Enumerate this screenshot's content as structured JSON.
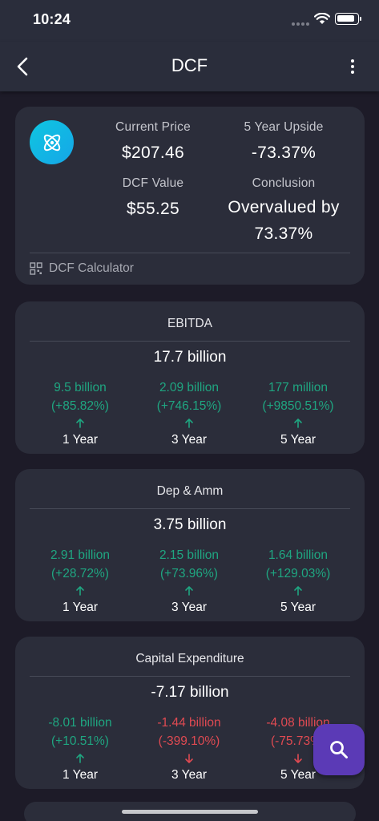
{
  "status_bar": {
    "time": "10:24"
  },
  "header": {
    "title": "DCF"
  },
  "summary": {
    "current_price_label": "Current Price",
    "current_price": "$207.46",
    "upside_label": "5 Year Upside",
    "upside": "-73.37%",
    "dcf_label": "DCF Value",
    "dcf_value": "$55.25",
    "conclusion_label": "Conclusion",
    "conclusion_line1": "Overvalued by",
    "conclusion_line2": "73.37%",
    "calculator_label": "DCF Calculator"
  },
  "metrics": [
    {
      "title": "EBITDA",
      "value": "17.7 billion",
      "cols": [
        {
          "value": "9.5 billion",
          "pct": "(+85.82%)",
          "dir": "up",
          "period": "1 Year"
        },
        {
          "value": "2.09 billion",
          "pct": "(+746.15%)",
          "dir": "up",
          "period": "3 Year"
        },
        {
          "value": "177 million",
          "pct": "(+9850.51%)",
          "dir": "up",
          "period": "5 Year"
        }
      ]
    },
    {
      "title": "Dep & Amm",
      "value": "3.75 billion",
      "cols": [
        {
          "value": "2.91 billion",
          "pct": "(+28.72%)",
          "dir": "up",
          "period": "1 Year"
        },
        {
          "value": "2.15 billion",
          "pct": "(+73.96%)",
          "dir": "up",
          "period": "3 Year"
        },
        {
          "value": "1.64 billion",
          "pct": "(+129.03%)",
          "dir": "up",
          "period": "5 Year"
        }
      ]
    },
    {
      "title": "Capital Expenditure",
      "value": "-7.17 billion",
      "cols": [
        {
          "value": "-8.01 billion",
          "pct": "(+10.51%)",
          "dir": "up",
          "period": "1 Year"
        },
        {
          "value": "-1.44 billion",
          "pct": "(-399.10%)",
          "dir": "down",
          "period": "3 Year"
        },
        {
          "value": "-4.08 billion",
          "pct": "(-75.73%)",
          "dir": "down",
          "period": "5 Year"
        }
      ]
    }
  ],
  "colors": {
    "positive": "#1fa681",
    "negative": "#e04a52",
    "accent": "#5b3ab6",
    "logo": "#0fc6e0"
  },
  "icons": {
    "back": "chevron-left-icon",
    "more": "more-vertical-icon",
    "logo": "atom-icon",
    "calculator": "grid-icon",
    "fab": "search-icon"
  }
}
